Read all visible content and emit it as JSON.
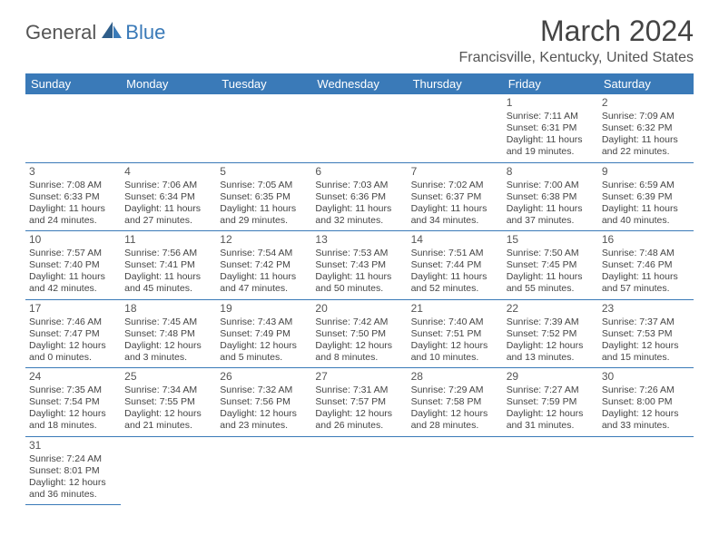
{
  "logo": {
    "part1": "General",
    "part2": "Blue"
  },
  "title": "March 2024",
  "location": "Francisville, Kentucky, United States",
  "colors": {
    "brand": "#3a7ab8",
    "headerText": "#ffffff",
    "text": "#444"
  },
  "weekdays": [
    "Sunday",
    "Monday",
    "Tuesday",
    "Wednesday",
    "Thursday",
    "Friday",
    "Saturday"
  ],
  "startOffset": 5,
  "days": [
    {
      "n": "1",
      "sr": "7:11 AM",
      "ss": "6:31 PM",
      "dl": "11 hours and 19 minutes."
    },
    {
      "n": "2",
      "sr": "7:09 AM",
      "ss": "6:32 PM",
      "dl": "11 hours and 22 minutes."
    },
    {
      "n": "3",
      "sr": "7:08 AM",
      "ss": "6:33 PM",
      "dl": "11 hours and 24 minutes."
    },
    {
      "n": "4",
      "sr": "7:06 AM",
      "ss": "6:34 PM",
      "dl": "11 hours and 27 minutes."
    },
    {
      "n": "5",
      "sr": "7:05 AM",
      "ss": "6:35 PM",
      "dl": "11 hours and 29 minutes."
    },
    {
      "n": "6",
      "sr": "7:03 AM",
      "ss": "6:36 PM",
      "dl": "11 hours and 32 minutes."
    },
    {
      "n": "7",
      "sr": "7:02 AM",
      "ss": "6:37 PM",
      "dl": "11 hours and 34 minutes."
    },
    {
      "n": "8",
      "sr": "7:00 AM",
      "ss": "6:38 PM",
      "dl": "11 hours and 37 minutes."
    },
    {
      "n": "9",
      "sr": "6:59 AM",
      "ss": "6:39 PM",
      "dl": "11 hours and 40 minutes."
    },
    {
      "n": "10",
      "sr": "7:57 AM",
      "ss": "7:40 PM",
      "dl": "11 hours and 42 minutes."
    },
    {
      "n": "11",
      "sr": "7:56 AM",
      "ss": "7:41 PM",
      "dl": "11 hours and 45 minutes."
    },
    {
      "n": "12",
      "sr": "7:54 AM",
      "ss": "7:42 PM",
      "dl": "11 hours and 47 minutes."
    },
    {
      "n": "13",
      "sr": "7:53 AM",
      "ss": "7:43 PM",
      "dl": "11 hours and 50 minutes."
    },
    {
      "n": "14",
      "sr": "7:51 AM",
      "ss": "7:44 PM",
      "dl": "11 hours and 52 minutes."
    },
    {
      "n": "15",
      "sr": "7:50 AM",
      "ss": "7:45 PM",
      "dl": "11 hours and 55 minutes."
    },
    {
      "n": "16",
      "sr": "7:48 AM",
      "ss": "7:46 PM",
      "dl": "11 hours and 57 minutes."
    },
    {
      "n": "17",
      "sr": "7:46 AM",
      "ss": "7:47 PM",
      "dl": "12 hours and 0 minutes."
    },
    {
      "n": "18",
      "sr": "7:45 AM",
      "ss": "7:48 PM",
      "dl": "12 hours and 3 minutes."
    },
    {
      "n": "19",
      "sr": "7:43 AM",
      "ss": "7:49 PM",
      "dl": "12 hours and 5 minutes."
    },
    {
      "n": "20",
      "sr": "7:42 AM",
      "ss": "7:50 PM",
      "dl": "12 hours and 8 minutes."
    },
    {
      "n": "21",
      "sr": "7:40 AM",
      "ss": "7:51 PM",
      "dl": "12 hours and 10 minutes."
    },
    {
      "n": "22",
      "sr": "7:39 AM",
      "ss": "7:52 PM",
      "dl": "12 hours and 13 minutes."
    },
    {
      "n": "23",
      "sr": "7:37 AM",
      "ss": "7:53 PM",
      "dl": "12 hours and 15 minutes."
    },
    {
      "n": "24",
      "sr": "7:35 AM",
      "ss": "7:54 PM",
      "dl": "12 hours and 18 minutes."
    },
    {
      "n": "25",
      "sr": "7:34 AM",
      "ss": "7:55 PM",
      "dl": "12 hours and 21 minutes."
    },
    {
      "n": "26",
      "sr": "7:32 AM",
      "ss": "7:56 PM",
      "dl": "12 hours and 23 minutes."
    },
    {
      "n": "27",
      "sr": "7:31 AM",
      "ss": "7:57 PM",
      "dl": "12 hours and 26 minutes."
    },
    {
      "n": "28",
      "sr": "7:29 AM",
      "ss": "7:58 PM",
      "dl": "12 hours and 28 minutes."
    },
    {
      "n": "29",
      "sr": "7:27 AM",
      "ss": "7:59 PM",
      "dl": "12 hours and 31 minutes."
    },
    {
      "n": "30",
      "sr": "7:26 AM",
      "ss": "8:00 PM",
      "dl": "12 hours and 33 minutes."
    },
    {
      "n": "31",
      "sr": "7:24 AM",
      "ss": "8:01 PM",
      "dl": "12 hours and 36 minutes."
    }
  ],
  "labels": {
    "sunrise": "Sunrise:",
    "sunset": "Sunset:",
    "daylight": "Daylight:"
  }
}
